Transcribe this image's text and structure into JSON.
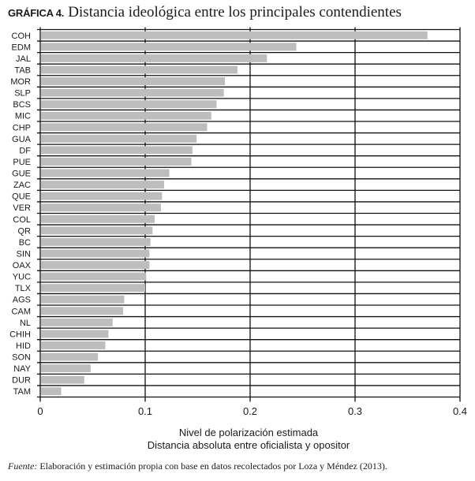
{
  "title": {
    "lead": "GRÁFICA 4.",
    "main": "Distancia ideológica entre los principales contendientes"
  },
  "source": {
    "label": "Fuente:",
    "text": "Elaboración y estimación propia con base en datos recolectados por Loza y Méndez (2013)."
  },
  "chart_data": {
    "type": "bar",
    "orientation": "horizontal",
    "categories": [
      "COH",
      "EDM",
      "JAL",
      "TAB",
      "MOR",
      "SLP",
      "BCS",
      "MIC",
      "CHP",
      "GUA",
      "DF",
      "PUE",
      "GUE",
      "ZAC",
      "QUE",
      "VER",
      "COL",
      "QR",
      "BC",
      "SIN",
      "OAX",
      "YUC",
      "TLX",
      "AGS",
      "CAM",
      "NL",
      "CHIH",
      "HID",
      "SON",
      "NAY",
      "DUR",
      "TAM"
    ],
    "values": [
      0.369,
      0.244,
      0.216,
      0.188,
      0.176,
      0.175,
      0.168,
      0.163,
      0.159,
      0.149,
      0.145,
      0.144,
      0.123,
      0.118,
      0.116,
      0.115,
      0.109,
      0.107,
      0.105,
      0.104,
      0.104,
      0.101,
      0.1,
      0.08,
      0.079,
      0.069,
      0.065,
      0.062,
      0.055,
      0.048,
      0.042,
      0.02
    ],
    "xlabel": [
      "Nivel de polarización estimada",
      "Distancia absoluta entre oficialista y opositor"
    ],
    "xlim": [
      0,
      0.4
    ],
    "xticks": [
      "0",
      "0.1",
      "0.2",
      "0.3",
      "0.4"
    ],
    "grid": true,
    "bar_color": "#bdbdbe",
    "legend": "none"
  }
}
